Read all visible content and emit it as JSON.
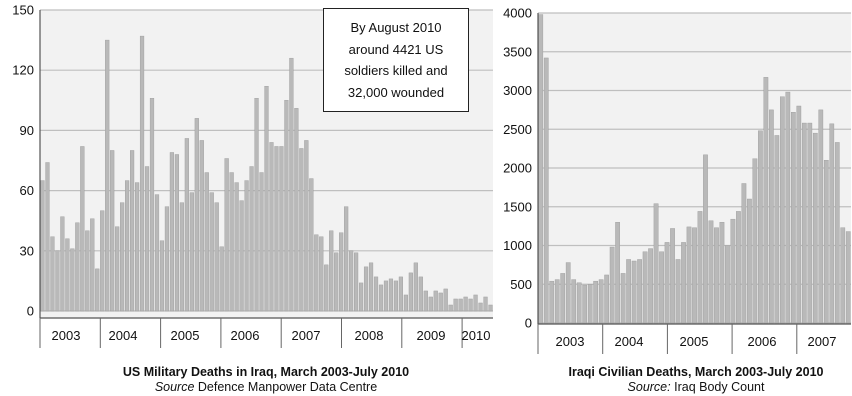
{
  "chart_data": [
    {
      "type": "bar",
      "title": "US Military Deaths in Iraq, March 2003-July 2010",
      "source_label": "Source",
      "source": "Defence Manpower Data Centre",
      "xlabel": "",
      "ylabel": "",
      "ylim": [
        0,
        150
      ],
      "yticks": [
        "0",
        "30",
        "60",
        "90",
        "120",
        "150"
      ],
      "years": [
        "2003",
        "2004",
        "2005",
        "2006",
        "2007",
        "2008",
        "2009",
        "2010"
      ],
      "grid": true,
      "annotation": [
        "By August 2010",
        "around 4421 US",
        "soldiers killed and",
        "32,000 wounded"
      ],
      "values": [
        65,
        74,
        37,
        30,
        47,
        36,
        31,
        44,
        82,
        40,
        46,
        21,
        50,
        135,
        80,
        42,
        54,
        65,
        80,
        64,
        137,
        72,
        106,
        58,
        35,
        52,
        79,
        78,
        54,
        86,
        59,
        96,
        85,
        69,
        59,
        54,
        32,
        76,
        69,
        64,
        55,
        65,
        72,
        106,
        69,
        112,
        84,
        82,
        82,
        105,
        126,
        101,
        81,
        85,
        66,
        38,
        37,
        23,
        40,
        29,
        39,
        52,
        30,
        29,
        14,
        22,
        24,
        17,
        13,
        15,
        16,
        15,
        17,
        8,
        19,
        24,
        17,
        10,
        7,
        10,
        9,
        11,
        3,
        6,
        6,
        7,
        6,
        8,
        4,
        7,
        3
      ]
    },
    {
      "type": "bar",
      "title": "Iraqi Civilian Deaths, March 2003-July 2010",
      "source_label": "Source:",
      "source": "Iraq Body Count",
      "xlabel": "",
      "ylabel": "",
      "ylim": [
        0,
        4000
      ],
      "yticks": [
        "0",
        "500",
        "1000",
        "1500",
        "2000",
        "2500",
        "3000",
        "3500",
        "4000"
      ],
      "years": [
        "2003",
        "2004",
        "2005",
        "2006",
        "2007"
      ],
      "grid": true,
      "values": [
        3980,
        3420,
        540,
        560,
        640,
        780,
        560,
        520,
        490,
        500,
        540,
        560,
        620,
        980,
        1300,
        640,
        820,
        800,
        820,
        920,
        960,
        1540,
        920,
        1040,
        1220,
        820,
        1040,
        1240,
        1230,
        1440,
        2170,
        1320,
        1230,
        1300,
        1000,
        1340,
        1440,
        1800,
        1600,
        2120,
        2480,
        3170,
        2750,
        2420,
        2920,
        2980,
        2720,
        2800,
        2580,
        2580,
        2450,
        2750,
        2100,
        2570,
        2330,
        1230,
        1180
      ]
    }
  ]
}
